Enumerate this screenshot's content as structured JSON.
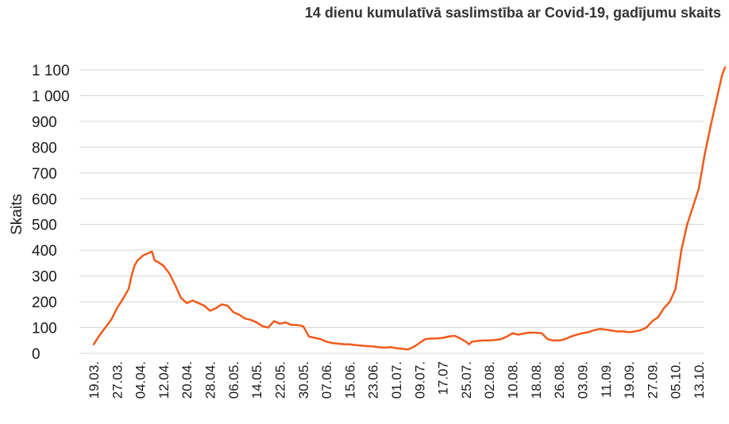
{
  "chart_data": {
    "type": "line",
    "title": "14 dienu kumulatīvā saslimstība ar Covid-19, gadījumu skaits",
    "xlabel": "",
    "ylabel": "Skaits",
    "ylim": [
      0,
      1100
    ],
    "yticks": [
      0,
      100,
      200,
      300,
      400,
      500,
      600,
      700,
      800,
      900,
      1000,
      1100
    ],
    "ytick_labels": [
      "0",
      "100",
      "200",
      "300",
      "400",
      "500",
      "600",
      "700",
      "800",
      "900",
      "1 000",
      "1 100"
    ],
    "x_ticks": [
      "19.03.",
      "27.03.",
      "04.04.",
      "12.04.",
      "20.04.",
      "28.04.",
      "06.05.",
      "14.05.",
      "22.05.",
      "30.05.",
      "07.06.",
      "15.06.",
      "23.06.",
      "01.07.",
      "09.07.",
      "17.07",
      "25.07.",
      "02.08.",
      "10.08.",
      "18.08.",
      "26.08.",
      "03.09.",
      "11.09.",
      "19.09.",
      "27.09.",
      "05.10.",
      "13.10."
    ],
    "grid": true,
    "legend": "none",
    "series": [
      {
        "color": "#f05a1a",
        "points": [
          [
            0,
            35
          ],
          [
            2,
            70
          ],
          [
            4,
            100
          ],
          [
            6,
            130
          ],
          [
            8,
            175
          ],
          [
            10,
            210
          ],
          [
            12,
            250
          ],
          [
            13,
            300
          ],
          [
            14,
            340
          ],
          [
            15,
            360
          ],
          [
            16,
            370
          ],
          [
            17,
            380
          ],
          [
            18,
            385
          ],
          [
            19,
            390
          ],
          [
            20,
            395
          ],
          [
            21,
            360
          ],
          [
            22,
            355
          ],
          [
            24,
            340
          ],
          [
            26,
            310
          ],
          [
            28,
            265
          ],
          [
            30,
            215
          ],
          [
            32,
            195
          ],
          [
            34,
            205
          ],
          [
            36,
            195
          ],
          [
            38,
            185
          ],
          [
            40,
            165
          ],
          [
            42,
            175
          ],
          [
            44,
            190
          ],
          [
            46,
            185
          ],
          [
            48,
            160
          ],
          [
            50,
            150
          ],
          [
            52,
            135
          ],
          [
            54,
            130
          ],
          [
            56,
            120
          ],
          [
            58,
            105
          ],
          [
            60,
            100
          ],
          [
            62,
            125
          ],
          [
            64,
            115
          ],
          [
            66,
            120
          ],
          [
            68,
            110
          ],
          [
            70,
            110
          ],
          [
            72,
            105
          ],
          [
            74,
            65
          ],
          [
            76,
            60
          ],
          [
            78,
            55
          ],
          [
            80,
            45
          ],
          [
            82,
            40
          ],
          [
            84,
            38
          ],
          [
            86,
            35
          ],
          [
            88,
            35
          ],
          [
            90,
            32
          ],
          [
            92,
            30
          ],
          [
            94,
            28
          ],
          [
            96,
            27
          ],
          [
            98,
            24
          ],
          [
            100,
            22
          ],
          [
            102,
            24
          ],
          [
            104,
            20
          ],
          [
            106,
            18
          ],
          [
            108,
            15
          ],
          [
            110,
            25
          ],
          [
            112,
            40
          ],
          [
            114,
            55
          ],
          [
            116,
            58
          ],
          [
            118,
            58
          ],
          [
            120,
            60
          ],
          [
            122,
            65
          ],
          [
            124,
            68
          ],
          [
            126,
            58
          ],
          [
            128,
            45
          ],
          [
            129,
            35
          ],
          [
            130,
            45
          ],
          [
            132,
            48
          ],
          [
            134,
            50
          ],
          [
            136,
            50
          ],
          [
            138,
            52
          ],
          [
            140,
            55
          ],
          [
            142,
            65
          ],
          [
            144,
            78
          ],
          [
            146,
            72
          ],
          [
            148,
            78
          ],
          [
            150,
            80
          ],
          [
            152,
            80
          ],
          [
            154,
            78
          ],
          [
            156,
            55
          ],
          [
            158,
            50
          ],
          [
            160,
            50
          ],
          [
            162,
            55
          ],
          [
            164,
            65
          ],
          [
            166,
            72
          ],
          [
            168,
            78
          ],
          [
            170,
            82
          ],
          [
            172,
            90
          ],
          [
            174,
            95
          ],
          [
            176,
            92
          ],
          [
            178,
            88
          ],
          [
            180,
            85
          ],
          [
            182,
            85
          ],
          [
            184,
            82
          ],
          [
            186,
            85
          ],
          [
            188,
            90
          ],
          [
            190,
            100
          ],
          [
            192,
            125
          ],
          [
            194,
            140
          ],
          [
            196,
            175
          ],
          [
            198,
            200
          ],
          [
            200,
            250
          ],
          [
            202,
            400
          ],
          [
            204,
            500
          ],
          [
            206,
            570
          ],
          [
            208,
            640
          ],
          [
            210,
            770
          ],
          [
            212,
            880
          ],
          [
            214,
            980
          ],
          [
            216,
            1080
          ],
          [
            217,
            1110
          ]
        ]
      }
    ]
  }
}
